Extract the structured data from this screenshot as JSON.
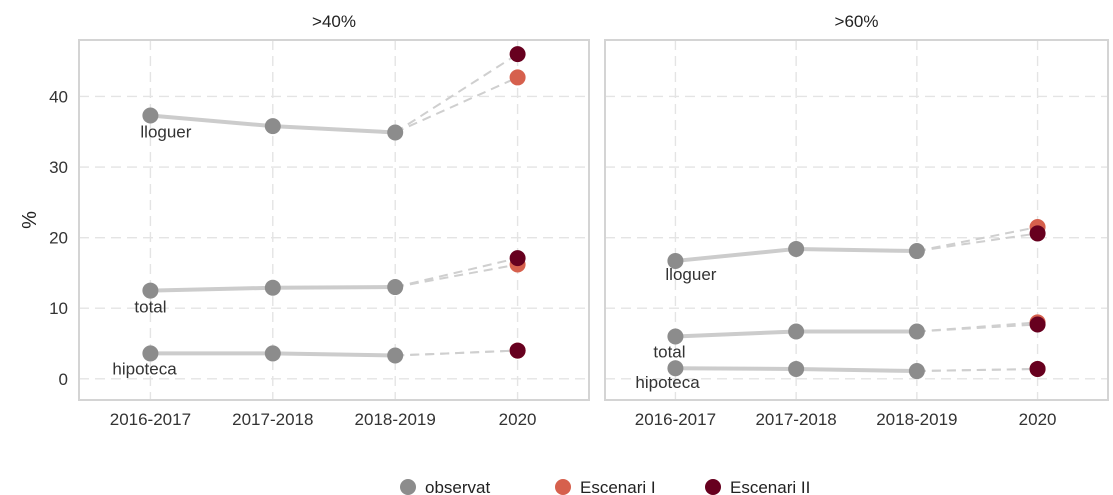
{
  "chart_data": {
    "type": "line",
    "ylabel": "%",
    "categories": [
      "2016-2017",
      "2017-2018",
      "2018-2019",
      "2020"
    ],
    "ylim": [
      -3,
      48
    ],
    "yticks": [
      0,
      10,
      20,
      30,
      40
    ],
    "grid": true,
    "legend": {
      "position": "bottom",
      "items": [
        {
          "label": "observat",
          "color": "#8c8c8c"
        },
        {
          "label": "Escenari I",
          "color": "#d6604d"
        },
        {
          "label": "Escenari II",
          "color": "#67001f"
        }
      ]
    },
    "colors": {
      "observed_line": "#cccccc",
      "observed_point": "#8c8c8c",
      "scenario1": "#d6604d",
      "scenario2": "#67001f"
    },
    "panels": [
      {
        "title": ">40%",
        "series": [
          {
            "name": "lloguer",
            "observat": [
              37.3,
              35.8,
              34.9
            ],
            "escenari_1": 42.7,
            "escenari_2": 46.0
          },
          {
            "name": "total",
            "observat": [
              12.5,
              12.9,
              13.0
            ],
            "escenari_1": 16.2,
            "escenari_2": 17.1
          },
          {
            "name": "hipoteca",
            "observat": [
              3.6,
              3.6,
              3.3
            ],
            "escenari_1": 4.0,
            "escenari_2": 4.0
          }
        ]
      },
      {
        "title": ">60%",
        "series": [
          {
            "name": "lloguer",
            "observat": [
              16.7,
              18.4,
              18.1
            ],
            "escenari_1": 21.5,
            "escenari_2": 20.6
          },
          {
            "name": "total",
            "observat": [
              6.0,
              6.7,
              6.7
            ],
            "escenari_1": 8.0,
            "escenari_2": 7.7
          },
          {
            "name": "hipoteca",
            "observat": [
              1.5,
              1.4,
              1.1
            ],
            "escenari_1": 1.4,
            "escenari_2": 1.4
          }
        ]
      }
    ]
  }
}
